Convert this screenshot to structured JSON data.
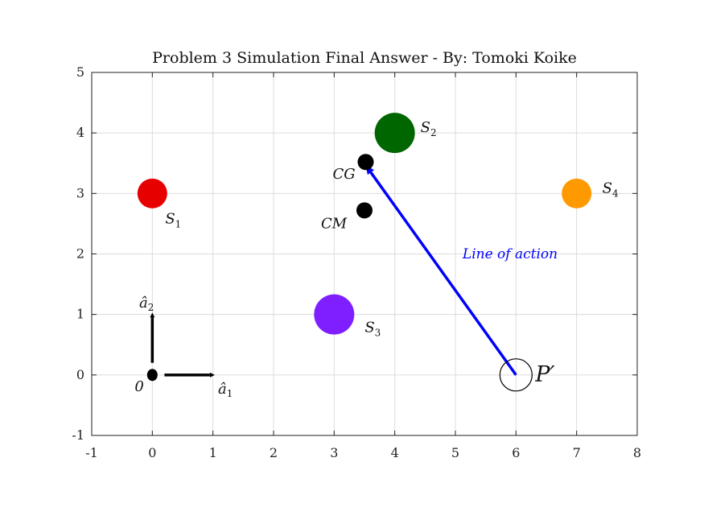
{
  "chart_data": {
    "type": "scatter",
    "title": "Problem 3 Simulation Final Answer - By: Tomoki Koike",
    "xlabel": "",
    "ylabel": "",
    "xlim": [
      -1,
      8
    ],
    "ylim": [
      -1,
      5
    ],
    "grid": true,
    "x_ticks": [
      "-1",
      "0",
      "1",
      "2",
      "3",
      "4",
      "5",
      "6",
      "7",
      "8"
    ],
    "y_ticks": [
      "-1",
      "0",
      "1",
      "2",
      "3",
      "4",
      "5"
    ],
    "bodies": [
      {
        "id": "S1",
        "label": "S",
        "sub": "1",
        "x": 0,
        "y": 3,
        "color": "#e60000",
        "size": "medium"
      },
      {
        "id": "S2",
        "label": "S",
        "sub": "2",
        "x": 4,
        "y": 4,
        "color": "#006600",
        "size": "large"
      },
      {
        "id": "S3",
        "label": "S",
        "sub": "3",
        "x": 3,
        "y": 1,
        "color": "#7f1fff",
        "size": "large"
      },
      {
        "id": "S4",
        "label": "S",
        "sub": "4",
        "x": 7,
        "y": 3,
        "color": "#ff9900",
        "size": "medium"
      }
    ],
    "points": [
      {
        "id": "CG",
        "label": "CG",
        "x": 3.52,
        "y": 3.52,
        "color": "#000000"
      },
      {
        "id": "CM",
        "label": "CM",
        "x": 3.5,
        "y": 2.72,
        "color": "#000000"
      },
      {
        "id": "origin",
        "label": "0",
        "x": 0,
        "y": 0,
        "color": "#000000"
      }
    ],
    "reference_point": {
      "label": "P′",
      "x": 6,
      "y": 0
    },
    "line_of_action": {
      "label": "Line of action",
      "from": [
        6,
        0
      ],
      "to": [
        3.52,
        3.52
      ],
      "color": "#0000ff"
    },
    "basis_vectors": [
      {
        "label": "â",
        "sub": "1",
        "from": [
          0.2,
          0
        ],
        "to": [
          1.03,
          0
        ]
      },
      {
        "label": "â",
        "sub": "2",
        "from": [
          0,
          0.2
        ],
        "to": [
          0,
          1.03
        ]
      }
    ]
  }
}
